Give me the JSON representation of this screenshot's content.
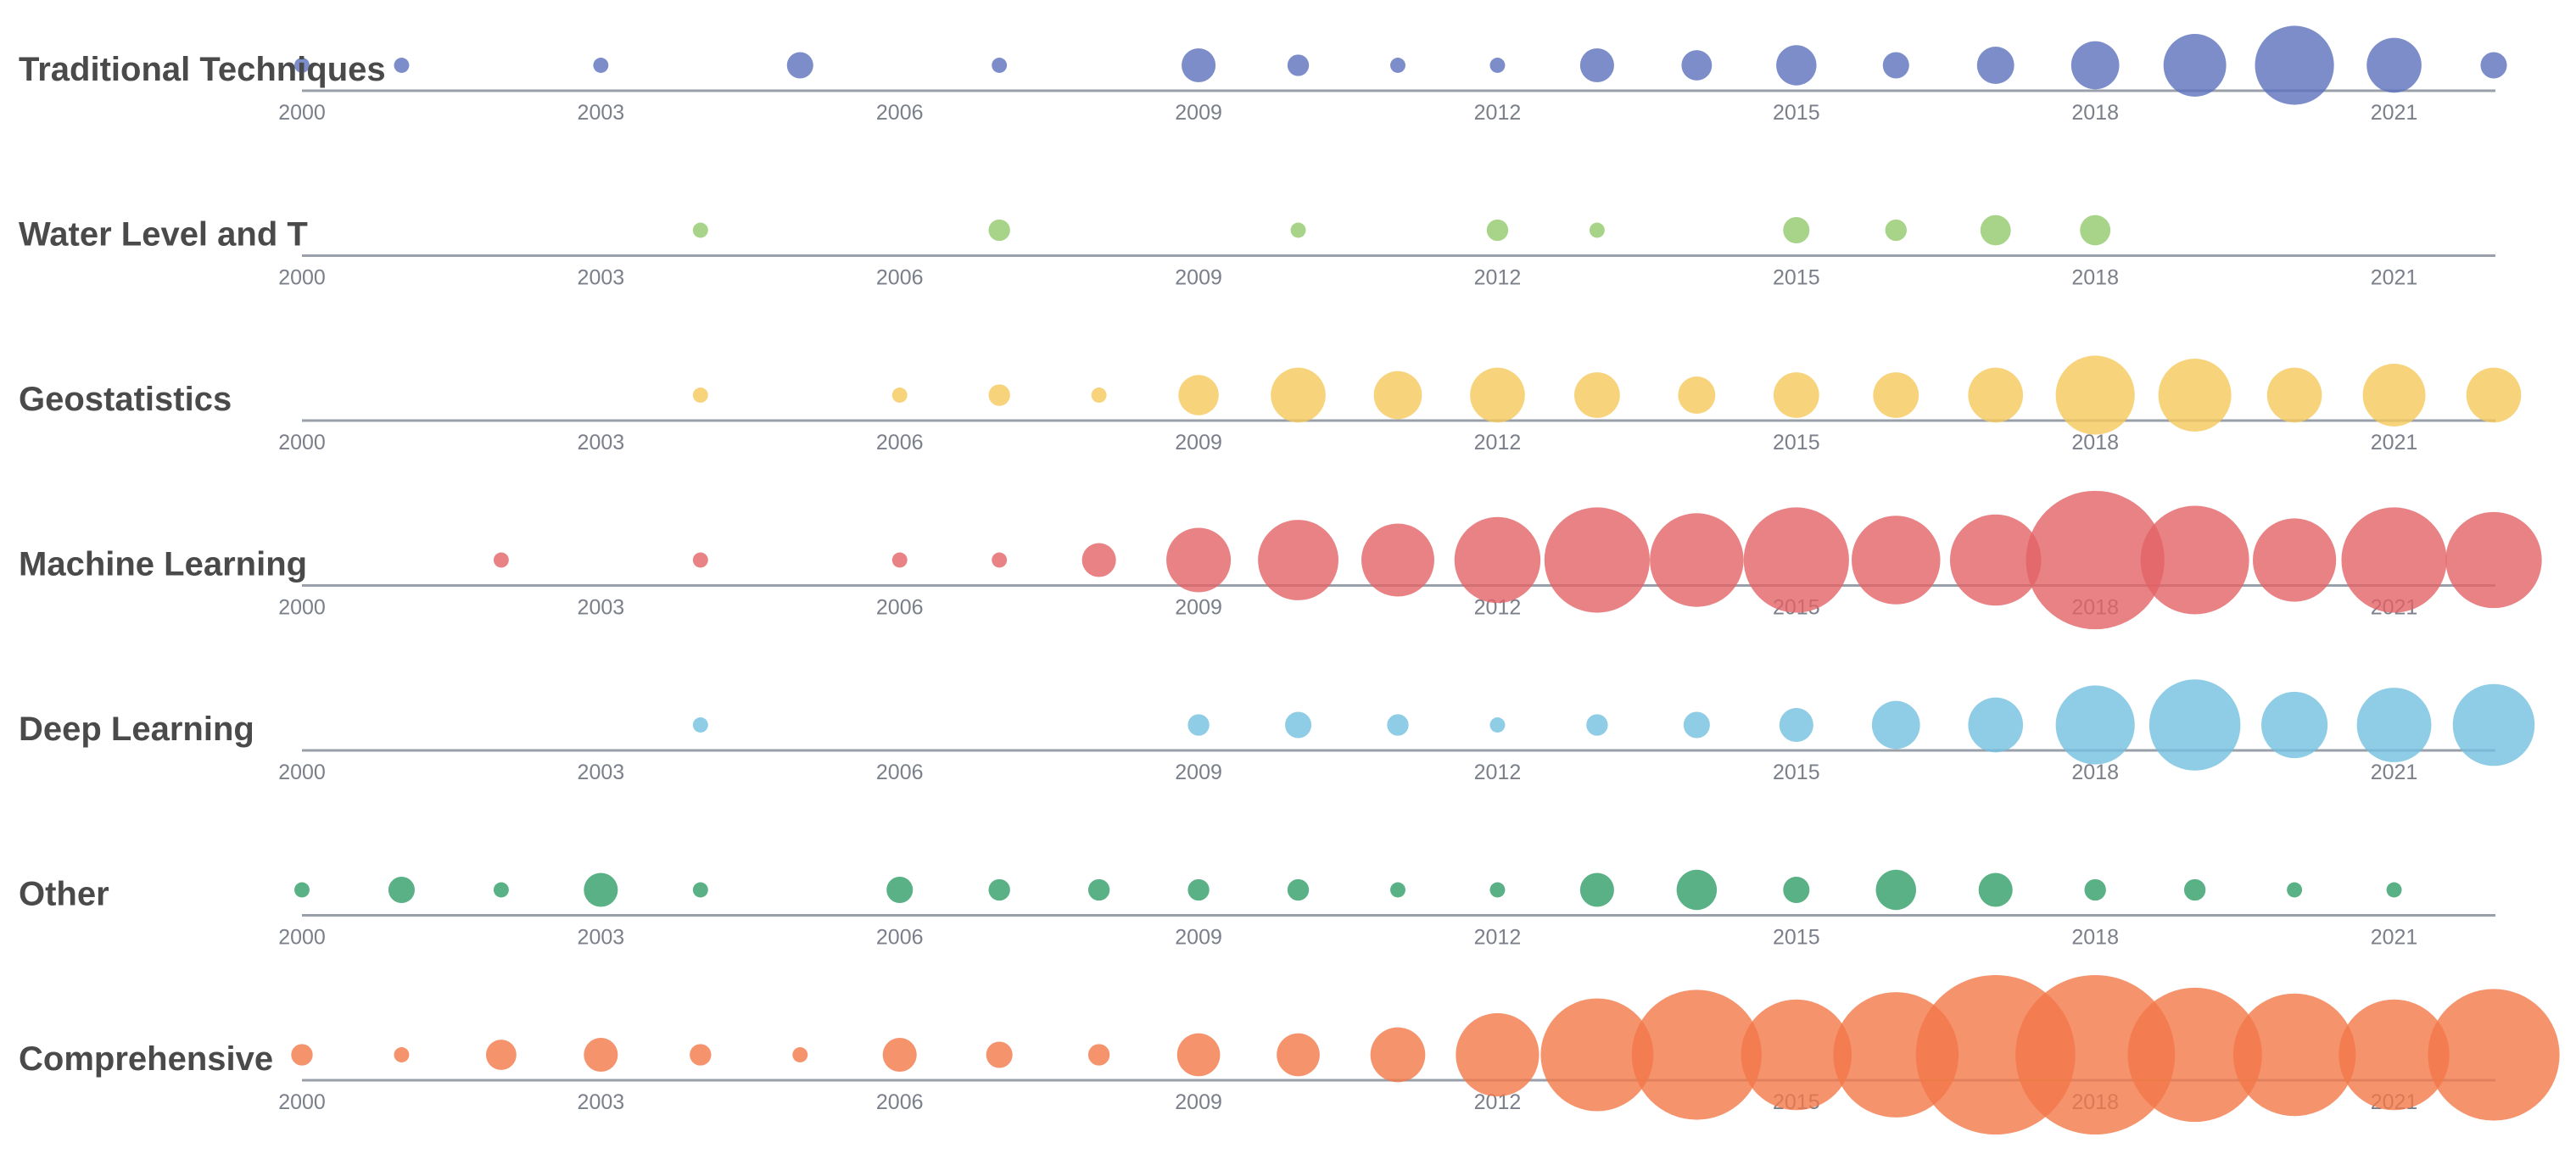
{
  "chart_data": {
    "type": "scatter",
    "subtype": "bubble-timeline",
    "title": "",
    "xlabel": "",
    "ylabel": "",
    "x_range": [
      2000,
      2022
    ],
    "tick_labels": [
      "2000",
      "2003",
      "2006",
      "2009",
      "2012",
      "2015",
      "2018",
      "2021"
    ],
    "years": [
      2000,
      2001,
      2002,
      2003,
      2004,
      2005,
      2006,
      2007,
      2008,
      2009,
      2010,
      2011,
      2012,
      2013,
      2014,
      2015,
      2016,
      2017,
      2018,
      2019,
      2020,
      2021,
      2022
    ],
    "series": [
      {
        "name": "Traditional Techniques",
        "color": "#5b71bd",
        "values": [
          1,
          1,
          0,
          1,
          0,
          3,
          0,
          1,
          0,
          5,
          2,
          1,
          1,
          5,
          4,
          7,
          3,
          6,
          10,
          17,
          27,
          13,
          3
        ]
      },
      {
        "name": "Water Level and T",
        "color": "#91c96b",
        "values": [
          0,
          0,
          0,
          0,
          1,
          0,
          0,
          2,
          0,
          0,
          1,
          0,
          2,
          1,
          0,
          3,
          2,
          4,
          4,
          0,
          0,
          0,
          0
        ]
      },
      {
        "name": "Geostatistics",
        "color": "#f5c85b",
        "values": [
          0,
          0,
          0,
          0,
          1,
          0,
          1,
          2,
          1,
          7,
          13,
          10,
          13,
          9,
          6,
          9,
          9,
          13,
          27,
          23,
          13,
          17,
          13
        ]
      },
      {
        "name": "Machine Learning",
        "color": "#e26367",
        "values": [
          0,
          0,
          1,
          0,
          1,
          0,
          1,
          1,
          5,
          18,
          28,
          23,
          32,
          48,
          38,
          48,
          34,
          36,
          83,
          51,
          30,
          48,
          40
        ]
      },
      {
        "name": "Deep Learning",
        "color": "#73bfdf",
        "values": [
          0,
          0,
          0,
          0,
          1,
          0,
          0,
          0,
          0,
          2,
          3,
          2,
          1,
          2,
          3,
          5,
          10,
          13,
          27,
          36,
          19,
          24,
          29
        ]
      },
      {
        "name": "Other",
        "color": "#2f9e67",
        "values": [
          1,
          3,
          1,
          5,
          1,
          0,
          3,
          2,
          2,
          2,
          2,
          1,
          1,
          5,
          7,
          3,
          7,
          5,
          2,
          2,
          1,
          1,
          0
        ]
      },
      {
        "name": "Comprehensive",
        "color": "#f27848",
        "values": [
          2,
          1,
          4,
          5,
          2,
          1,
          5,
          3,
          2,
          8,
          8,
          13,
          30,
          55,
          73,
          53,
          68,
          110,
          110,
          78,
          65,
          53,
          75
        ]
      }
    ]
  }
}
